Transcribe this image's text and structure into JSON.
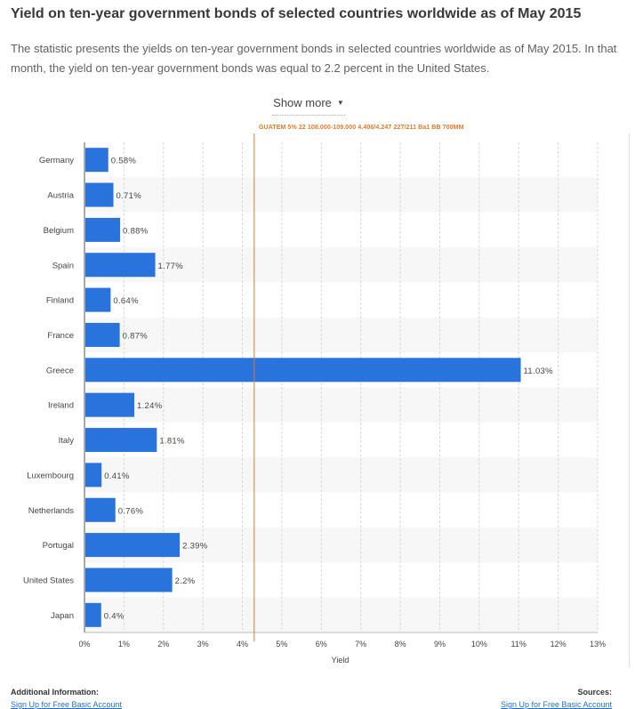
{
  "page": {
    "title": "Yield on ten-year government bonds of selected countries worldwide as of May 2015",
    "description": "The statistic presents the yields on ten-year government bonds in selected countries worldwide as of May 2015. In that month, the yield on ten-year government bonds was equal to 2.2 percent in the United States.",
    "show_more": "Show more",
    "ticker_text": "GUATEM 5%   22 108.000-109.000  4.406/4.247   227/211  Ba1  BB   700MM",
    "footer": {
      "additional_label": "Additional Information:",
      "additional_link": "Sign Up for Free Basic Account",
      "sources_label": "Sources:",
      "sources_link": "Sign Up for Free Basic Account"
    }
  },
  "colors": {
    "bar": "#2873dc",
    "marker_line": "#e07a2e",
    "stripe": "#f7f7f7",
    "grid": "#d8d8d8"
  },
  "chart_data": {
    "type": "bar",
    "orientation": "horizontal",
    "categories": [
      "Germany",
      "Austria",
      "Belgium",
      "Spain",
      "Finland",
      "France",
      "Greece",
      "Ireland",
      "Italy",
      "Luxembourg",
      "Netherlands",
      "Portugal",
      "United States",
      "Japan"
    ],
    "values": [
      0.58,
      0.71,
      0.88,
      1.77,
      0.64,
      0.87,
      11.03,
      1.24,
      1.81,
      0.41,
      0.76,
      2.39,
      2.2,
      0.4
    ],
    "value_labels": [
      "0.58%",
      "0.71%",
      "0.88%",
      "1.77%",
      "0.64%",
      "0.87%",
      "11.03%",
      "1.24%",
      "1.81%",
      "0.41%",
      "0.76%",
      "2.39%",
      "2.2%",
      "0.4%"
    ],
    "x_ticks": [
      "0%",
      "1%",
      "2%",
      "3%",
      "4%",
      "5%",
      "6%",
      "7%",
      "8%",
      "9%",
      "10%",
      "11%",
      "12%",
      "13%"
    ],
    "xlim": [
      0,
      13
    ],
    "xlabel": "Yield",
    "ylabel": "",
    "grid": true,
    "marker_value": 4.3
  }
}
